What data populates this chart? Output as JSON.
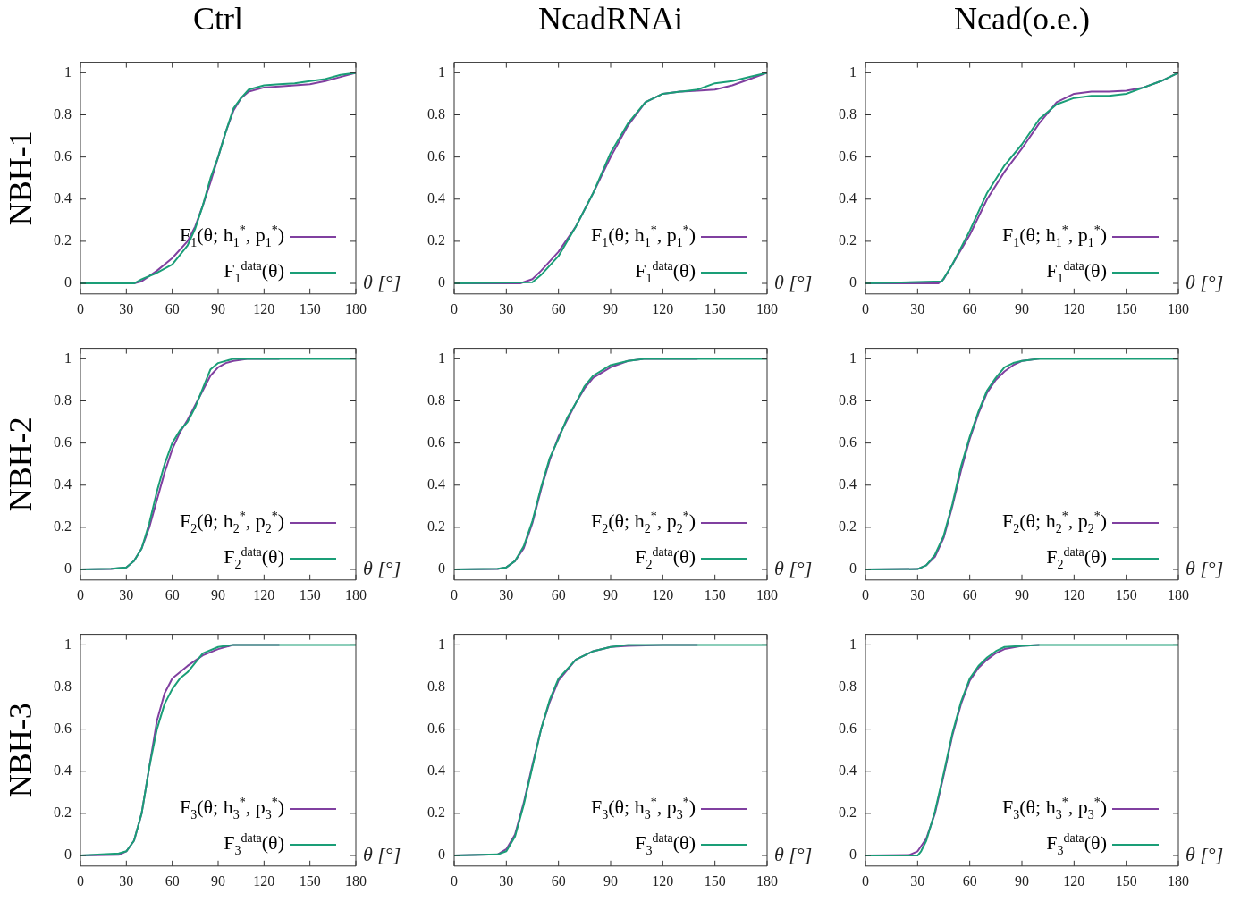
{
  "chart_data": [
    {
      "type": "line",
      "title": "Ctrl",
      "ylabel": "NBH-1",
      "xlabel": "θ [°]",
      "xlim": [
        0,
        180
      ],
      "ylim": [
        -0.05,
        1.05
      ],
      "xticks": [
        0,
        30,
        60,
        90,
        120,
        150,
        180
      ],
      "yticks": [
        0,
        0.2,
        0.4,
        0.6,
        0.8,
        1
      ],
      "legend": "bottom right",
      "marker": "none",
      "line_style": "solid",
      "series": [
        {
          "name": "F$_{1}$(θ; h$_{1}$$^{*}$, p$_{1}$$^{*}$)",
          "color": "#8040a0",
          "x": [
            0,
            35,
            40,
            50,
            60,
            70,
            75,
            80,
            85,
            90,
            95,
            100,
            105,
            110,
            120,
            130,
            140,
            150,
            160,
            170,
            180
          ],
          "values": [
            0,
            0,
            0.01,
            0.06,
            0.12,
            0.2,
            0.27,
            0.37,
            0.48,
            0.6,
            0.72,
            0.82,
            0.88,
            0.91,
            0.93,
            0.935,
            0.94,
            0.945,
            0.96,
            0.98,
            1
          ]
        },
        {
          "name": "F$_{1}$$^{data}$(θ)",
          "color": "#1a9e77",
          "x": [
            0,
            35,
            40,
            50,
            60,
            70,
            75,
            80,
            85,
            90,
            95,
            100,
            105,
            110,
            120,
            130,
            140,
            150,
            160,
            170,
            180
          ],
          "values": [
            0,
            0,
            0.02,
            0.05,
            0.09,
            0.18,
            0.26,
            0.37,
            0.5,
            0.6,
            0.72,
            0.83,
            0.88,
            0.92,
            0.94,
            0.945,
            0.95,
            0.96,
            0.97,
            0.99,
            1
          ]
        }
      ]
    },
    {
      "type": "line",
      "title": "NcadRNAi",
      "xlabel": "θ [°]",
      "xlim": [
        0,
        180
      ],
      "ylim": [
        -0.05,
        1.05
      ],
      "xticks": [
        0,
        30,
        60,
        90,
        120,
        150,
        180
      ],
      "yticks": [
        0,
        0.2,
        0.4,
        0.6,
        0.8,
        1
      ],
      "legend": "bottom right",
      "marker": "none",
      "line_style": "solid",
      "series": [
        {
          "name": "F$_{1}$(θ; h$_{1}$$^{*}$, p$_{1}$$^{*}$)",
          "color": "#8040a0",
          "x": [
            0,
            38,
            45,
            50,
            60,
            70,
            80,
            90,
            100,
            110,
            120,
            130,
            140,
            150,
            160,
            170,
            180
          ],
          "values": [
            0,
            0,
            0.02,
            0.06,
            0.15,
            0.27,
            0.43,
            0.6,
            0.75,
            0.86,
            0.9,
            0.91,
            0.915,
            0.92,
            0.94,
            0.97,
            1
          ]
        },
        {
          "name": "F$_{1}$$^{data}$(θ)",
          "color": "#1a9e77",
          "x": [
            0,
            45,
            50,
            60,
            70,
            80,
            90,
            100,
            110,
            120,
            130,
            140,
            150,
            160,
            170,
            180
          ],
          "values": [
            0,
            0.005,
            0.04,
            0.13,
            0.27,
            0.43,
            0.62,
            0.76,
            0.86,
            0.9,
            0.91,
            0.92,
            0.95,
            0.96,
            0.98,
            1
          ]
        }
      ]
    },
    {
      "type": "line",
      "title": "Ncad(o.e.)",
      "xlabel": "θ [°]",
      "xlim": [
        0,
        180
      ],
      "ylim": [
        -0.05,
        1.05
      ],
      "xticks": [
        0,
        30,
        60,
        90,
        120,
        150,
        180
      ],
      "yticks": [
        0,
        0.2,
        0.4,
        0.6,
        0.8,
        1
      ],
      "legend": "bottom right",
      "marker": "none",
      "line_style": "solid",
      "series": [
        {
          "name": "F$_{1}$(θ; h$_{1}$$^{*}$, p$_{1}$$^{*}$)",
          "color": "#8040a0",
          "x": [
            0,
            42,
            45,
            50,
            60,
            70,
            80,
            90,
            100,
            110,
            120,
            130,
            140,
            150,
            160,
            170,
            180
          ],
          "values": [
            0,
            0,
            0.02,
            0.09,
            0.23,
            0.4,
            0.53,
            0.64,
            0.76,
            0.86,
            0.9,
            0.91,
            0.91,
            0.915,
            0.93,
            0.96,
            1
          ]
        },
        {
          "name": "F$_{1}$$^{data}$(θ)",
          "color": "#1a9e77",
          "x": [
            0,
            44,
            50,
            60,
            70,
            80,
            90,
            100,
            110,
            120,
            130,
            140,
            150,
            160,
            170,
            180
          ],
          "values": [
            0,
            0.01,
            0.09,
            0.25,
            0.43,
            0.56,
            0.66,
            0.78,
            0.85,
            0.88,
            0.89,
            0.89,
            0.9,
            0.93,
            0.96,
            1
          ]
        }
      ]
    },
    {
      "type": "line",
      "ylabel": "NBH-2",
      "xlabel": "θ [°]",
      "xlim": [
        0,
        180
      ],
      "ylim": [
        -0.05,
        1.05
      ],
      "xticks": [
        0,
        30,
        60,
        90,
        120,
        150,
        180
      ],
      "yticks": [
        0,
        0.2,
        0.4,
        0.6,
        0.8,
        1
      ],
      "legend": "bottom right",
      "marker": "none",
      "line_style": "solid",
      "series": [
        {
          "name": "F$_{2}$(θ; h$_{2}$$^{*}$, p$_{2}$$^{*}$)",
          "color": "#8040a0",
          "x": [
            0,
            20,
            30,
            35,
            40,
            45,
            50,
            55,
            60,
            65,
            70,
            75,
            80,
            85,
            90,
            95,
            100,
            110,
            130
          ],
          "values": [
            0,
            0.002,
            0.01,
            0.04,
            0.1,
            0.2,
            0.33,
            0.46,
            0.57,
            0.65,
            0.71,
            0.78,
            0.85,
            0.92,
            0.96,
            0.98,
            0.99,
            1,
            1
          ]
        },
        {
          "name": "F$_{2}$$^{data}$(θ)",
          "color": "#1a9e77",
          "x": [
            0,
            20,
            30,
            35,
            40,
            45,
            50,
            55,
            60,
            65,
            70,
            75,
            80,
            85,
            90,
            100,
            180
          ],
          "values": [
            0,
            0.003,
            0.01,
            0.04,
            0.1,
            0.22,
            0.37,
            0.5,
            0.6,
            0.66,
            0.7,
            0.77,
            0.86,
            0.95,
            0.98,
            1,
            1
          ]
        }
      ]
    },
    {
      "type": "line",
      "xlabel": "θ [°]",
      "xlim": [
        0,
        180
      ],
      "ylim": [
        -0.05,
        1.05
      ],
      "xticks": [
        0,
        30,
        60,
        90,
        120,
        150,
        180
      ],
      "yticks": [
        0,
        0.2,
        0.4,
        0.6,
        0.8,
        1
      ],
      "legend": "bottom right",
      "marker": "none",
      "line_style": "solid",
      "series": [
        {
          "name": "F$_{2}$(θ; h$_{2}$$^{*}$, p$_{2}$$^{*}$)",
          "color": "#8040a0",
          "x": [
            0,
            25,
            30,
            35,
            40,
            45,
            50,
            55,
            60,
            65,
            70,
            75,
            80,
            90,
            100,
            110,
            140
          ],
          "values": [
            0,
            0.002,
            0.01,
            0.04,
            0.1,
            0.22,
            0.38,
            0.52,
            0.63,
            0.71,
            0.79,
            0.86,
            0.91,
            0.96,
            0.99,
            1,
            1
          ]
        },
        {
          "name": "F$_{2}$$^{data}$(θ)",
          "color": "#1a9e77",
          "x": [
            0,
            25,
            30,
            35,
            40,
            45,
            50,
            55,
            60,
            65,
            70,
            75,
            80,
            90,
            100,
            110,
            180
          ],
          "values": [
            0,
            0.003,
            0.01,
            0.04,
            0.11,
            0.23,
            0.39,
            0.53,
            0.62,
            0.72,
            0.79,
            0.87,
            0.92,
            0.97,
            0.99,
            1,
            1
          ]
        }
      ]
    },
    {
      "type": "line",
      "xlabel": "θ [°]",
      "xlim": [
        0,
        180
      ],
      "ylim": [
        -0.05,
        1.05
      ],
      "xticks": [
        0,
        30,
        60,
        90,
        120,
        150,
        180
      ],
      "yticks": [
        0,
        0.2,
        0.4,
        0.6,
        0.8,
        1
      ],
      "legend": "bottom right",
      "marker": "none",
      "line_style": "solid",
      "series": [
        {
          "name": "F$_{2}$(θ; h$_{2}$$^{*}$, p$_{2}$$^{*}$)",
          "color": "#8040a0",
          "x": [
            0,
            30,
            35,
            40,
            45,
            50,
            55,
            60,
            65,
            70,
            75,
            80,
            85,
            90,
            100
          ],
          "values": [
            0,
            0.002,
            0.02,
            0.06,
            0.15,
            0.3,
            0.47,
            0.62,
            0.74,
            0.84,
            0.9,
            0.94,
            0.97,
            0.99,
            1
          ]
        },
        {
          "name": "F$_{2}$$^{data}$(θ)",
          "color": "#1a9e77",
          "x": [
            0,
            30,
            35,
            40,
            45,
            50,
            55,
            60,
            65,
            70,
            75,
            80,
            85,
            90,
            100,
            180
          ],
          "values": [
            0,
            0.002,
            0.02,
            0.07,
            0.16,
            0.31,
            0.49,
            0.63,
            0.75,
            0.85,
            0.91,
            0.96,
            0.98,
            0.99,
            1,
            1
          ]
        }
      ]
    },
    {
      "type": "line",
      "ylabel": "NBH-3",
      "xlabel": "θ [°]",
      "xlim": [
        0,
        180
      ],
      "ylim": [
        -0.05,
        1.05
      ],
      "xticks": [
        0,
        30,
        60,
        90,
        120,
        150,
        180
      ],
      "yticks": [
        0,
        0.2,
        0.4,
        0.6,
        0.8,
        1
      ],
      "legend": "bottom right",
      "marker": "none",
      "line_style": "solid",
      "series": [
        {
          "name": "F$_{3}$(θ; h$_{3}$$^{*}$, p$_{3}$$^{*}$)",
          "color": "#8040a0",
          "x": [
            0,
            25,
            30,
            35,
            40,
            45,
            50,
            55,
            60,
            70,
            80,
            90,
            100,
            130
          ],
          "values": [
            0,
            0.003,
            0.02,
            0.07,
            0.2,
            0.42,
            0.64,
            0.77,
            0.84,
            0.9,
            0.95,
            0.98,
            1,
            1
          ]
        },
        {
          "name": "F$_{3}$$^{data}$(θ)",
          "color": "#1a9e77",
          "x": [
            0,
            25,
            30,
            35,
            40,
            45,
            50,
            55,
            60,
            65,
            70,
            80,
            90,
            100,
            180
          ],
          "values": [
            0,
            0.01,
            0.02,
            0.07,
            0.2,
            0.42,
            0.6,
            0.72,
            0.79,
            0.84,
            0.87,
            0.96,
            0.99,
            1,
            1
          ]
        }
      ]
    },
    {
      "type": "line",
      "xlabel": "θ [°]",
      "xlim": [
        0,
        180
      ],
      "ylim": [
        -0.05,
        1.05
      ],
      "xticks": [
        0,
        30,
        60,
        90,
        120,
        150,
        180
      ],
      "yticks": [
        0,
        0.2,
        0.4,
        0.6,
        0.8,
        1
      ],
      "legend": "bottom right",
      "marker": "none",
      "line_style": "solid",
      "series": [
        {
          "name": "F$_{3}$(θ; h$_{3}$$^{*}$, p$_{3}$$^{*}$)",
          "color": "#8040a0",
          "x": [
            0,
            25,
            30,
            35,
            40,
            45,
            50,
            55,
            60,
            70,
            80,
            90,
            100,
            120,
            140
          ],
          "values": [
            0,
            0.005,
            0.03,
            0.1,
            0.25,
            0.43,
            0.6,
            0.73,
            0.83,
            0.93,
            0.97,
            0.99,
            0.995,
            1,
            1
          ]
        },
        {
          "name": "F$_{3}$$^{data}$(θ)",
          "color": "#1a9e77",
          "x": [
            0,
            25,
            30,
            35,
            40,
            45,
            50,
            55,
            60,
            70,
            80,
            90,
            100,
            120,
            180
          ],
          "values": [
            0,
            0.005,
            0.02,
            0.09,
            0.24,
            0.42,
            0.6,
            0.74,
            0.84,
            0.93,
            0.97,
            0.99,
            1,
            1,
            1
          ]
        }
      ]
    },
    {
      "type": "line",
      "xlabel": "θ [°]",
      "xlim": [
        0,
        180
      ],
      "ylim": [
        -0.05,
        1.05
      ],
      "xticks": [
        0,
        30,
        60,
        90,
        120,
        150,
        180
      ],
      "yticks": [
        0,
        0.2,
        0.4,
        0.6,
        0.8,
        1
      ],
      "legend": "bottom right",
      "marker": "none",
      "line_style": "solid",
      "series": [
        {
          "name": "F$_{3}$(θ; h$_{3}$$^{*}$, p$_{3}$$^{*}$)",
          "color": "#8040a0",
          "x": [
            0,
            25,
            30,
            35,
            40,
            45,
            50,
            55,
            60,
            65,
            70,
            75,
            80,
            90,
            100
          ],
          "values": [
            0,
            0.002,
            0.02,
            0.08,
            0.2,
            0.38,
            0.57,
            0.72,
            0.83,
            0.89,
            0.93,
            0.96,
            0.98,
            0.995,
            1
          ]
        },
        {
          "name": "F$_{3}$$^{data}$(θ)",
          "color": "#1a9e77",
          "x": [
            0,
            30,
            32,
            35,
            40,
            45,
            50,
            55,
            60,
            65,
            70,
            75,
            80,
            90,
            100,
            180
          ],
          "values": [
            0,
            0,
            0.02,
            0.07,
            0.21,
            0.39,
            0.58,
            0.73,
            0.84,
            0.9,
            0.94,
            0.97,
            0.99,
            0.995,
            1,
            1
          ]
        }
      ]
    }
  ]
}
